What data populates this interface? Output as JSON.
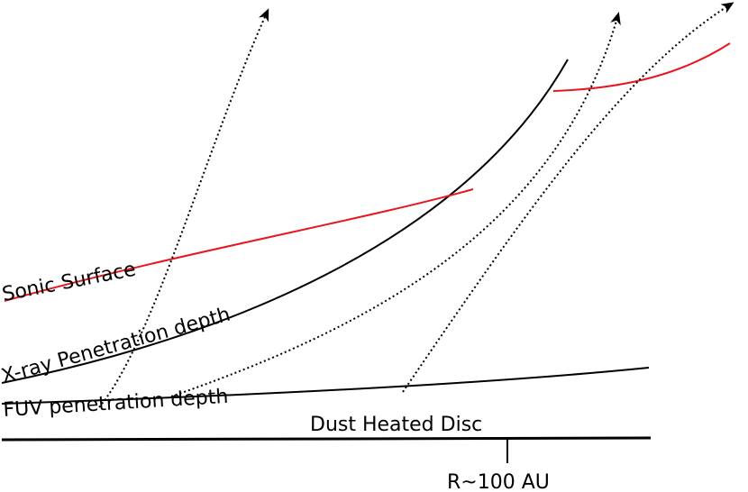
{
  "labels": {
    "sonic_surface": "Sonic Surface",
    "xray_depth": "X-ray Penetration depth",
    "fuv_depth": "FUV penetration depth",
    "dust_disc": "Dust Heated Disc",
    "radius_marker": "R~100 AU"
  },
  "colors": {
    "sonic_surface": "#e8161e",
    "boundary": "#000000",
    "flow": "#000000"
  },
  "icons": {
    "flow_arrowhead": "arrowhead-icon"
  }
}
